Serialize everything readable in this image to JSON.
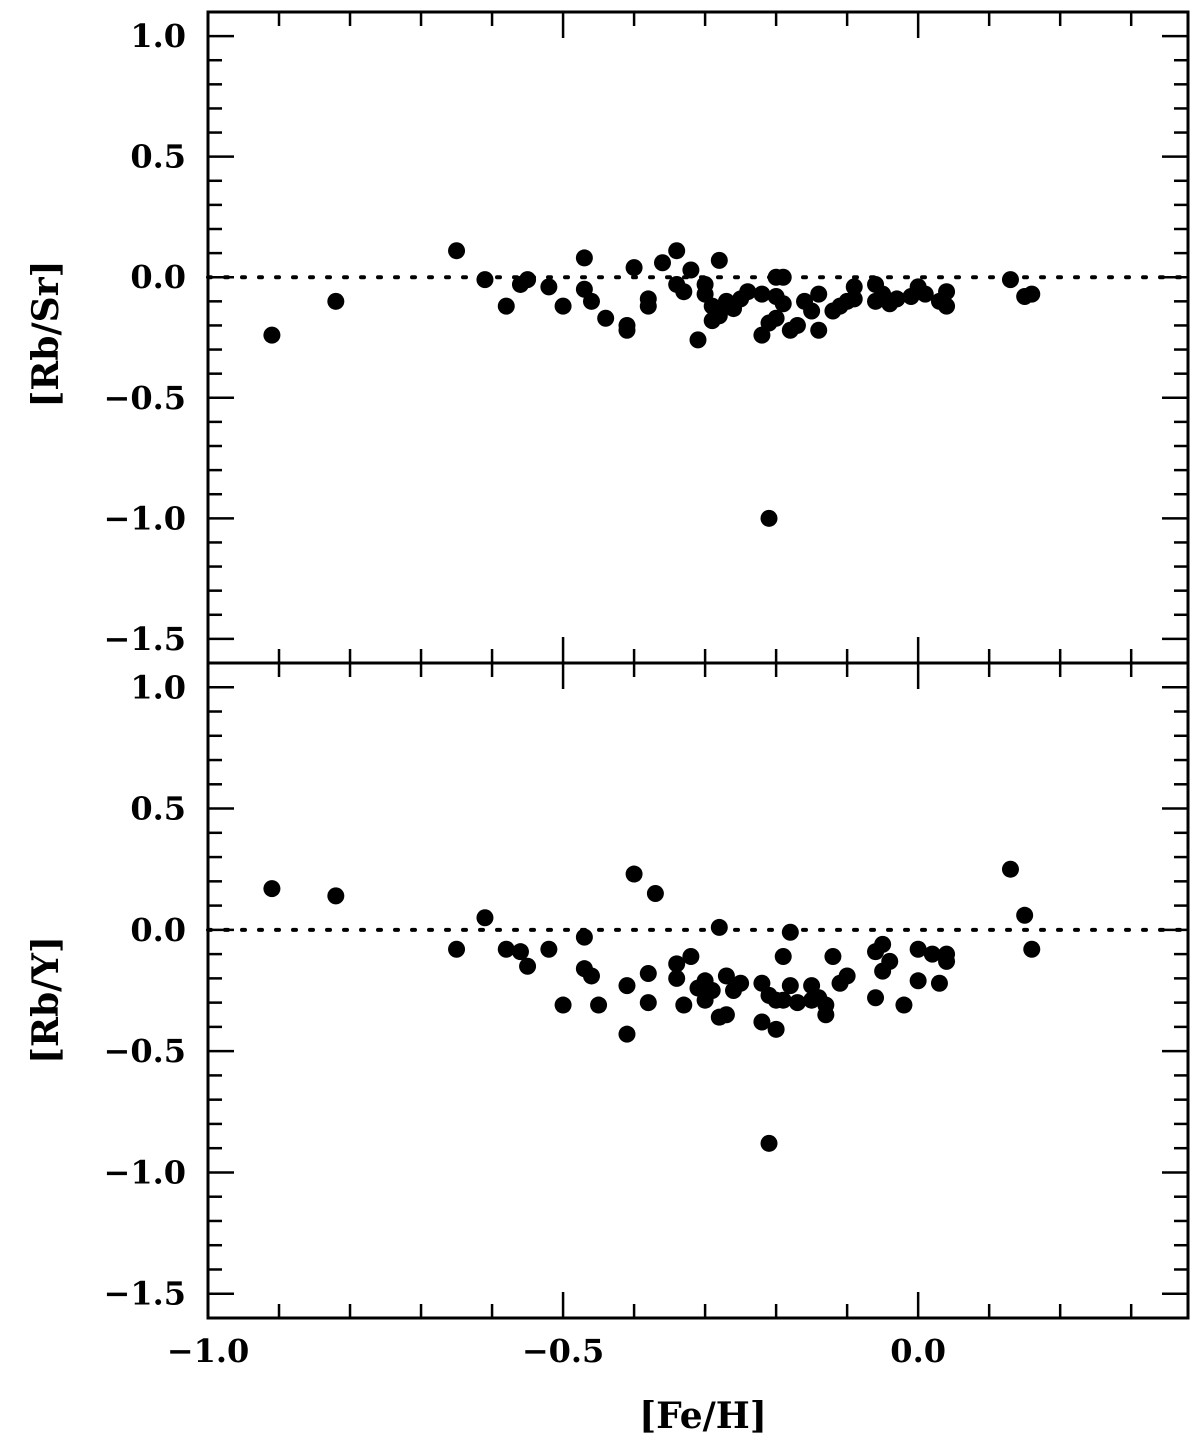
{
  "chart_data": [
    {
      "type": "scatter",
      "panel": "top",
      "title": "",
      "xlabel": "",
      "ylabel": "[Rb/Sr]",
      "xlim": [
        -1.0,
        0.38
      ],
      "ylim": [
        -1.6,
        1.1
      ],
      "x_ticks": [
        -1.0,
        -0.5,
        0.0
      ],
      "x_tick_labels": [],
      "y_ticks": [
        -1.5,
        -1.0,
        -0.5,
        0.0,
        0.5,
        1.0
      ],
      "y_tick_labels": [
        "−1.5",
        "−1.0",
        "−0.5",
        "0.0",
        "0.5",
        "1.0"
      ],
      "reference_line": {
        "y": 0.0,
        "style": "dotted"
      },
      "grid": false,
      "legend": "none",
      "marker": "filled-circle",
      "color": "#000000",
      "points": [
        {
          "x": -0.91,
          "y": -0.24
        },
        {
          "x": -0.82,
          "y": -0.1
        },
        {
          "x": -0.65,
          "y": 0.11
        },
        {
          "x": -0.61,
          "y": -0.01
        },
        {
          "x": -0.58,
          "y": -0.12
        },
        {
          "x": -0.56,
          "y": -0.03
        },
        {
          "x": -0.55,
          "y": -0.01
        },
        {
          "x": -0.52,
          "y": -0.04
        },
        {
          "x": -0.5,
          "y": -0.12
        },
        {
          "x": -0.47,
          "y": 0.08
        },
        {
          "x": -0.47,
          "y": -0.05
        },
        {
          "x": -0.46,
          "y": -0.1
        },
        {
          "x": -0.44,
          "y": -0.17
        },
        {
          "x": -0.41,
          "y": -0.2
        },
        {
          "x": -0.41,
          "y": -0.22
        },
        {
          "x": -0.4,
          "y": 0.04
        },
        {
          "x": -0.38,
          "y": -0.09
        },
        {
          "x": -0.38,
          "y": -0.12
        },
        {
          "x": -0.36,
          "y": 0.06
        },
        {
          "x": -0.34,
          "y": 0.11
        },
        {
          "x": -0.34,
          "y": -0.03
        },
        {
          "x": -0.33,
          "y": -0.06
        },
        {
          "x": -0.32,
          "y": 0.03
        },
        {
          "x": -0.31,
          "y": -0.26
        },
        {
          "x": -0.3,
          "y": -0.03
        },
        {
          "x": -0.3,
          "y": -0.07
        },
        {
          "x": -0.29,
          "y": -0.12
        },
        {
          "x": -0.29,
          "y": -0.18
        },
        {
          "x": -0.28,
          "y": -0.16
        },
        {
          "x": -0.28,
          "y": 0.07
        },
        {
          "x": -0.27,
          "y": -0.1
        },
        {
          "x": -0.26,
          "y": -0.13
        },
        {
          "x": -0.25,
          "y": -0.09
        },
        {
          "x": -0.24,
          "y": -0.06
        },
        {
          "x": -0.22,
          "y": -0.24
        },
        {
          "x": -0.22,
          "y": -0.07
        },
        {
          "x": -0.21,
          "y": -0.19
        },
        {
          "x": -0.21,
          "y": -1.0
        },
        {
          "x": -0.2,
          "y": -0.08
        },
        {
          "x": -0.2,
          "y": -0.17
        },
        {
          "x": -0.2,
          "y": 0.0
        },
        {
          "x": -0.19,
          "y": 0.0
        },
        {
          "x": -0.19,
          "y": -0.11
        },
        {
          "x": -0.18,
          "y": -0.22
        },
        {
          "x": -0.17,
          "y": -0.2
        },
        {
          "x": -0.16,
          "y": -0.1
        },
        {
          "x": -0.15,
          "y": -0.14
        },
        {
          "x": -0.14,
          "y": -0.07
        },
        {
          "x": -0.14,
          "y": -0.22
        },
        {
          "x": -0.12,
          "y": -0.14
        },
        {
          "x": -0.11,
          "y": -0.12
        },
        {
          "x": -0.1,
          "y": -0.1
        },
        {
          "x": -0.09,
          "y": -0.09
        },
        {
          "x": -0.09,
          "y": -0.04
        },
        {
          "x": -0.06,
          "y": -0.03
        },
        {
          "x": -0.06,
          "y": -0.1
        },
        {
          "x": -0.05,
          "y": -0.07
        },
        {
          "x": -0.04,
          "y": -0.11
        },
        {
          "x": -0.03,
          "y": -0.09
        },
        {
          "x": -0.01,
          "y": -0.08
        },
        {
          "x": 0.0,
          "y": -0.04
        },
        {
          "x": 0.01,
          "y": -0.07
        },
        {
          "x": 0.03,
          "y": -0.1
        },
        {
          "x": 0.04,
          "y": -0.06
        },
        {
          "x": 0.04,
          "y": -0.12
        },
        {
          "x": 0.13,
          "y": -0.01
        },
        {
          "x": 0.15,
          "y": -0.08
        },
        {
          "x": 0.16,
          "y": -0.07
        }
      ]
    },
    {
      "type": "scatter",
      "panel": "bottom",
      "title": "",
      "xlabel": "[Fe/H]",
      "ylabel": "[Rb/Y]",
      "xlim": [
        -1.0,
        0.38
      ],
      "ylim": [
        -1.6,
        1.1
      ],
      "x_ticks": [
        -1.0,
        -0.5,
        0.0
      ],
      "x_tick_labels": [
        "−1.0",
        "−0.5",
        "0.0"
      ],
      "y_ticks": [
        -1.5,
        -1.0,
        -0.5,
        0.0,
        0.5,
        1.0
      ],
      "y_tick_labels": [
        "−1.5",
        "−1.0",
        "−0.5",
        "0.0",
        "0.5",
        "1.0"
      ],
      "reference_line": {
        "y": 0.0,
        "style": "dotted"
      },
      "grid": false,
      "legend": "none",
      "marker": "filled-circle",
      "color": "#000000",
      "points": [
        {
          "x": -0.91,
          "y": 0.17
        },
        {
          "x": -0.82,
          "y": 0.14
        },
        {
          "x": -0.65,
          "y": -0.08
        },
        {
          "x": -0.61,
          "y": 0.05
        },
        {
          "x": -0.58,
          "y": -0.08
        },
        {
          "x": -0.56,
          "y": -0.09
        },
        {
          "x": -0.55,
          "y": -0.15
        },
        {
          "x": -0.52,
          "y": -0.08
        },
        {
          "x": -0.5,
          "y": -0.31
        },
        {
          "x": -0.47,
          "y": -0.03
        },
        {
          "x": -0.47,
          "y": -0.16
        },
        {
          "x": -0.46,
          "y": -0.19
        },
        {
          "x": -0.45,
          "y": -0.31
        },
        {
          "x": -0.41,
          "y": -0.23
        },
        {
          "x": -0.41,
          "y": -0.43
        },
        {
          "x": -0.4,
          "y": 0.23
        },
        {
          "x": -0.38,
          "y": -0.18
        },
        {
          "x": -0.38,
          "y": -0.3
        },
        {
          "x": -0.37,
          "y": 0.15
        },
        {
          "x": -0.34,
          "y": -0.14
        },
        {
          "x": -0.34,
          "y": -0.2
        },
        {
          "x": -0.33,
          "y": -0.31
        },
        {
          "x": -0.32,
          "y": -0.11
        },
        {
          "x": -0.31,
          "y": -0.24
        },
        {
          "x": -0.3,
          "y": -0.29
        },
        {
          "x": -0.3,
          "y": -0.21
        },
        {
          "x": -0.29,
          "y": -0.25
        },
        {
          "x": -0.28,
          "y": 0.01
        },
        {
          "x": -0.28,
          "y": -0.36
        },
        {
          "x": -0.27,
          "y": -0.19
        },
        {
          "x": -0.27,
          "y": -0.35
        },
        {
          "x": -0.26,
          "y": -0.25
        },
        {
          "x": -0.25,
          "y": -0.22
        },
        {
          "x": -0.22,
          "y": -0.38
        },
        {
          "x": -0.22,
          "y": -0.22
        },
        {
          "x": -0.21,
          "y": -0.27
        },
        {
          "x": -0.21,
          "y": -0.88
        },
        {
          "x": -0.2,
          "y": -0.41
        },
        {
          "x": -0.2,
          "y": -0.29
        },
        {
          "x": -0.19,
          "y": -0.11
        },
        {
          "x": -0.19,
          "y": -0.29
        },
        {
          "x": -0.18,
          "y": -0.01
        },
        {
          "x": -0.18,
          "y": -0.23
        },
        {
          "x": -0.17,
          "y": -0.3
        },
        {
          "x": -0.15,
          "y": -0.29
        },
        {
          "x": -0.15,
          "y": -0.23
        },
        {
          "x": -0.14,
          "y": -0.28
        },
        {
          "x": -0.13,
          "y": -0.31
        },
        {
          "x": -0.13,
          "y": -0.35
        },
        {
          "x": -0.12,
          "y": -0.11
        },
        {
          "x": -0.11,
          "y": -0.22
        },
        {
          "x": -0.1,
          "y": -0.19
        },
        {
          "x": -0.06,
          "y": -0.09
        },
        {
          "x": -0.06,
          "y": -0.28
        },
        {
          "x": -0.05,
          "y": -0.06
        },
        {
          "x": -0.05,
          "y": -0.17
        },
        {
          "x": -0.04,
          "y": -0.13
        },
        {
          "x": -0.02,
          "y": -0.31
        },
        {
          "x": 0.0,
          "y": -0.08
        },
        {
          "x": 0.0,
          "y": -0.21
        },
        {
          "x": 0.02,
          "y": -0.1
        },
        {
          "x": 0.03,
          "y": -0.22
        },
        {
          "x": 0.04,
          "y": -0.1
        },
        {
          "x": 0.04,
          "y": -0.13
        },
        {
          "x": 0.13,
          "y": 0.25
        },
        {
          "x": 0.15,
          "y": 0.06
        },
        {
          "x": 0.16,
          "y": -0.08
        }
      ]
    }
  ]
}
